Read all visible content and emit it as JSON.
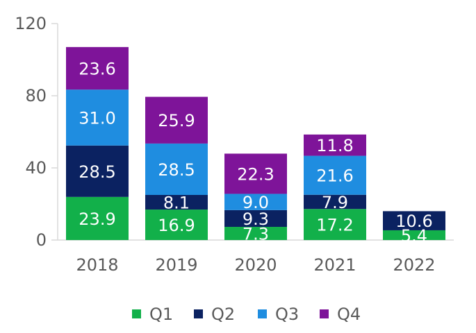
{
  "chart_data": {
    "type": "bar",
    "stacked": true,
    "categories": [
      "2018",
      "2019",
      "2020",
      "2021",
      "2022"
    ],
    "series": [
      {
        "name": "Q1",
        "color": "#12b04a",
        "values": [
          23.9,
          16.9,
          7.3,
          17.2,
          5.4
        ]
      },
      {
        "name": "Q2",
        "color": "#0b2261",
        "values": [
          28.5,
          8.1,
          9.3,
          7.9,
          10.6
        ]
      },
      {
        "name": "Q3",
        "color": "#1f8de0",
        "values": [
          31.0,
          28.5,
          9.0,
          21.6,
          null
        ]
      },
      {
        "name": "Q4",
        "color": "#7e1499",
        "values": [
          23.6,
          25.9,
          22.3,
          11.8,
          null
        ]
      }
    ],
    "ylim": [
      0,
      120
    ],
    "yticks": [
      0,
      40,
      80,
      120
    ],
    "grid": false,
    "legend": "bottom",
    "title": "",
    "xlabel": "",
    "ylabel": ""
  }
}
